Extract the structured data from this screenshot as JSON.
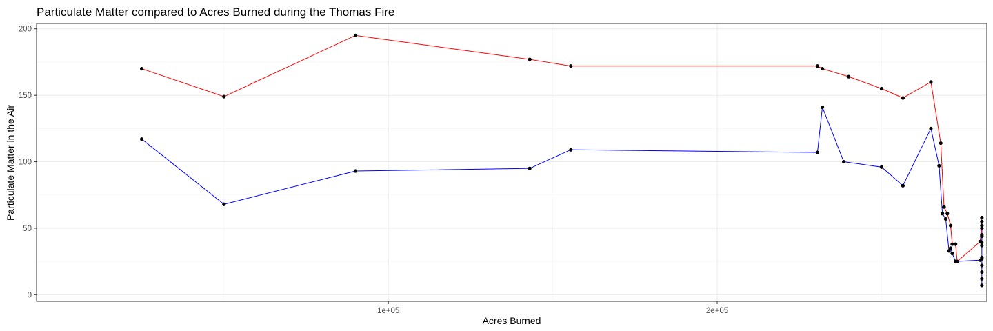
{
  "chart_data": {
    "type": "line",
    "title": "Particulate Matter compared to Acres Burned during the Thomas Fire",
    "xlabel": "Acres Burned",
    "ylabel": "Particulate Matter in the Air",
    "xlim": [
      -7000,
      282000
    ],
    "ylim": [
      -5,
      204
    ],
    "x_ticks": [
      100000,
      200000
    ],
    "x_tick_labels": [
      "1e+05",
      "2e+05"
    ],
    "y_ticks": [
      0,
      50,
      100,
      150,
      200
    ],
    "y_tick_labels": [
      "0",
      "50",
      "100",
      "150",
      "200"
    ],
    "grid": true,
    "legend": "none",
    "colors": {
      "series_high": "#ff0000",
      "series_low": "#0000ff",
      "points": "#000000",
      "grid": "#ebebeb",
      "panel_border": "#333333"
    },
    "series": [
      {
        "color": "#ff0000",
        "points": [
          [
            25000,
            170
          ],
          [
            50000,
            149
          ],
          [
            90000,
            195
          ],
          [
            143000,
            177
          ],
          [
            155500,
            172
          ],
          [
            230500,
            172
          ],
          [
            232000,
            170
          ],
          [
            240000,
            164
          ],
          [
            250000,
            155
          ],
          [
            256500,
            148
          ],
          [
            265000,
            160
          ],
          [
            268000,
            114
          ],
          [
            269000,
            66
          ],
          [
            270000,
            61
          ],
          [
            271000,
            52
          ],
          [
            271500,
            38
          ],
          [
            272500,
            38
          ],
          [
            273000,
            25
          ],
          [
            280000,
            40
          ],
          [
            280500,
            58
          ],
          [
            280500,
            52
          ],
          [
            280500,
            45
          ],
          [
            280500,
            39
          ]
        ]
      },
      {
        "color": "#0000ff",
        "points": [
          [
            25000,
            117
          ],
          [
            50000,
            68
          ],
          [
            90000,
            93
          ],
          [
            143000,
            95
          ],
          [
            155500,
            109
          ],
          [
            230500,
            107
          ],
          [
            232000,
            141
          ],
          [
            238500,
            100
          ],
          [
            250000,
            96
          ],
          [
            256500,
            82
          ],
          [
            265000,
            125
          ],
          [
            267500,
            97
          ],
          [
            268500,
            61
          ],
          [
            269500,
            57
          ],
          [
            270500,
            33
          ],
          [
            271000,
            35
          ],
          [
            271500,
            31
          ],
          [
            272500,
            25
          ],
          [
            280000,
            26
          ],
          [
            280500,
            27
          ],
          [
            280500,
            7
          ],
          [
            280500,
            12
          ],
          [
            280500,
            17
          ],
          [
            280500,
            22
          ],
          [
            280500,
            28
          ],
          [
            280500,
            37
          ],
          [
            280500,
            44
          ],
          [
            280500,
            50
          ],
          [
            280500,
            55
          ]
        ]
      }
    ]
  }
}
